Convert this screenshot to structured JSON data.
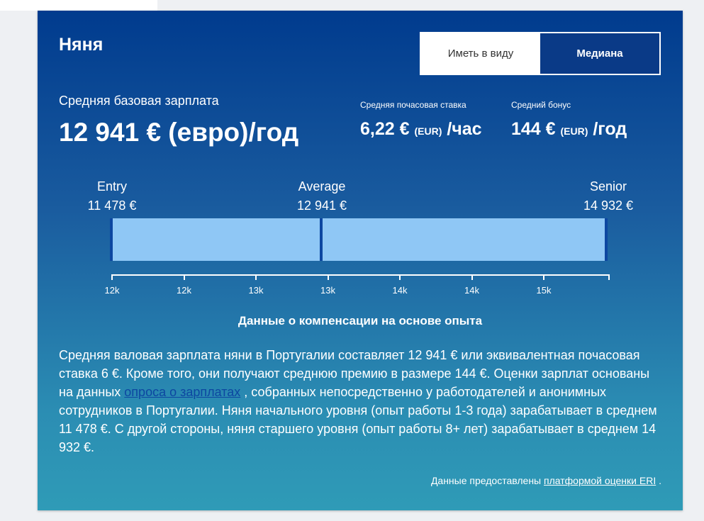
{
  "title": "Няня",
  "toggle": {
    "option1": "Иметь в виду",
    "option2": "Медиана"
  },
  "base": {
    "label": "Средняя базовая зарплата",
    "value": "12 941 € (евро)/год"
  },
  "hourly": {
    "label": "Средняя почасовая ставка",
    "amount": "6,22 €",
    "unit": "(EUR)",
    "suffix": "/час"
  },
  "bonus": {
    "label": "Средний бонус",
    "amount": "144 €",
    "unit": "(EUR)",
    "suffix": "/год"
  },
  "levels": {
    "entry": {
      "label": "Entry",
      "value": "11 478 €"
    },
    "average": {
      "label": "Average",
      "value": "12 941 €"
    },
    "senior": {
      "label": "Senior",
      "value": "14 932 €"
    }
  },
  "chart_data": {
    "type": "bar",
    "categories": [
      "Entry",
      "Average",
      "Senior"
    ],
    "values": [
      11478,
      12941,
      14932
    ],
    "tick_labels": [
      "12k",
      "12k",
      "13k",
      "13k",
      "14k",
      "14k",
      "15k"
    ],
    "xlim": [
      11478,
      14932
    ]
  },
  "comp_heading": "Данные о компенсации на основе опыта",
  "description": {
    "part1": "Средняя валовая зарплата няни в Португалии составляет 12 941 € или эквивалентная почасовая ставка 6 €. Кроме того, они получают среднюю премию в размере 144 €. Оценки зарплат основаны на данных ",
    "link": "опроса о зарплатах",
    "part2": " , собранных непосредственно у работодателей и анонимных сотрудников в Португалии. Няня начального уровня (опыт работы 1-3 года) зарабатывает в среднем 11 478 €. С другой стороны, няня старшего уровня (опыт работы 8+ лет) зарабатывает в среднем 14 932 €."
  },
  "credit": {
    "prefix": "Данные предоставлены ",
    "link": "платформой оценки ERI",
    "suffix": " ."
  }
}
